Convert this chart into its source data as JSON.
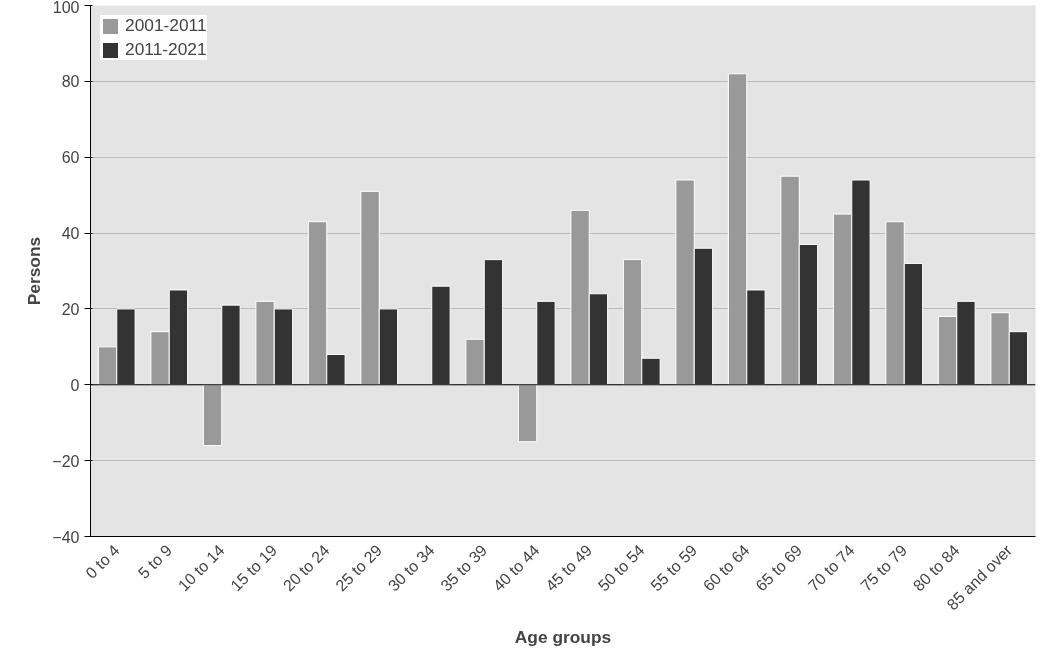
{
  "chart_data": {
    "type": "bar",
    "xlabel": "Age groups",
    "ylabel": "Persons",
    "categories": [
      "0 to 4",
      "5 to 9",
      "10 to 14",
      "15 to 19",
      "20 to 24",
      "25 to 29",
      "30 to 34",
      "35 to 39",
      "40 to 44",
      "45 to 49",
      "50 to 54",
      "55 to 59",
      "60 to 64",
      "65 to 69",
      "70 to 74",
      "75 to 79",
      "80 to 84",
      "85 and over"
    ],
    "series": [
      {
        "name": "2001-2011",
        "color": "#999999",
        "values": [
          10,
          14,
          -16,
          22,
          43,
          51,
          null,
          12,
          -15,
          46,
          33,
          54,
          82,
          55,
          45,
          43,
          18,
          19
        ]
      },
      {
        "name": "2011-2021",
        "color": "#333333",
        "values": [
          20,
          25,
          21,
          20,
          8,
          20,
          26,
          33,
          22,
          24,
          7,
          36,
          25,
          37,
          54,
          32,
          22,
          14
        ]
      }
    ],
    "ylim": [
      -40,
      100
    ],
    "yticks": [
      -40,
      -20,
      0,
      20,
      40,
      60,
      80,
      100
    ],
    "grid": "y",
    "legend": "top left"
  }
}
